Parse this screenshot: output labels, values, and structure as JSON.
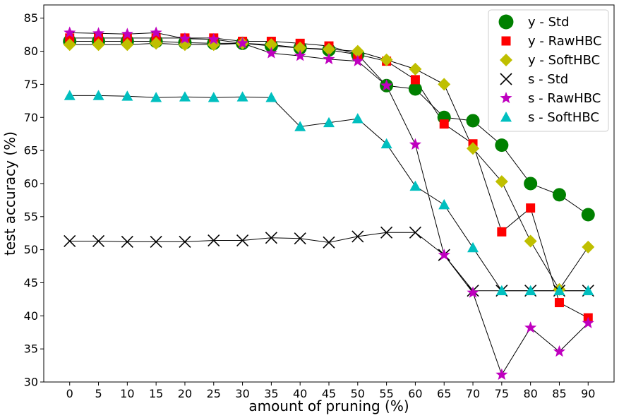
{
  "chart_data": {
    "type": "line",
    "xlabel": "amount of pruning (%)",
    "ylabel": "test accuracy (%)",
    "x": [
      0,
      5,
      10,
      15,
      20,
      25,
      30,
      35,
      40,
      45,
      50,
      55,
      60,
      65,
      70,
      75,
      80,
      85,
      90
    ],
    "xlim": [
      -4.5,
      94.5
    ],
    "ylim": [
      30,
      87
    ],
    "xticks": [
      0,
      5,
      10,
      15,
      20,
      25,
      30,
      35,
      40,
      45,
      50,
      55,
      60,
      65,
      70,
      75,
      80,
      85,
      90
    ],
    "yticks": [
      30,
      35,
      40,
      45,
      50,
      55,
      60,
      65,
      70,
      75,
      80,
      85
    ],
    "grid": false,
    "legend_position": "top-right",
    "series": [
      {
        "name": "y - Std",
        "marker": "circle",
        "color": "#008000",
        "values": [
          81.5,
          81.5,
          81.5,
          81.5,
          81.3,
          81.2,
          81.2,
          80.8,
          80.5,
          80.2,
          79.5,
          74.8,
          74.3,
          70.0,
          69.5,
          65.8,
          60.0,
          58.3,
          55.3
        ]
      },
      {
        "name": "y - RawHBC",
        "marker": "square",
        "color": "#ff0000",
        "values": [
          82.0,
          82.0,
          82.0,
          82.0,
          82.0,
          82.0,
          81.5,
          81.5,
          81.2,
          80.8,
          79.5,
          78.5,
          75.7,
          69.0,
          66.0,
          52.7,
          56.3,
          42.0,
          39.7
        ]
      },
      {
        "name": "y - SoftHBC",
        "marker": "diamond",
        "color": "#bfbf00",
        "values": [
          81.0,
          81.0,
          81.0,
          81.2,
          81.0,
          81.0,
          81.2,
          81.0,
          80.5,
          80.3,
          80.0,
          78.7,
          77.3,
          75.0,
          65.3,
          60.3,
          51.3,
          44.0,
          50.4
        ]
      },
      {
        "name": "s - Std",
        "marker": "x",
        "color": "#000000",
        "values": [
          51.3,
          51.3,
          51.2,
          51.2,
          51.2,
          51.4,
          51.4,
          51.8,
          51.7,
          51.1,
          52.0,
          52.6,
          52.6,
          49.2,
          43.8,
          43.8,
          43.8,
          43.8,
          43.8
        ]
      },
      {
        "name": "s - RawHBC",
        "marker": "star",
        "color": "#bf00bf",
        "values": [
          82.8,
          82.7,
          82.6,
          82.8,
          81.9,
          81.8,
          81.2,
          79.7,
          79.3,
          78.8,
          78.5,
          74.8,
          65.9,
          49.2,
          43.5,
          31.1,
          38.2,
          34.6,
          38.9
        ]
      },
      {
        "name": "s - SoftHBC",
        "marker": "triangle",
        "color": "#00bfbf",
        "values": [
          73.3,
          73.3,
          73.2,
          73.0,
          73.1,
          73.0,
          73.1,
          73.0,
          68.6,
          69.2,
          69.8,
          66.0,
          59.6,
          56.8,
          50.3,
          43.8,
          43.8,
          43.8,
          43.8
        ]
      }
    ]
  }
}
